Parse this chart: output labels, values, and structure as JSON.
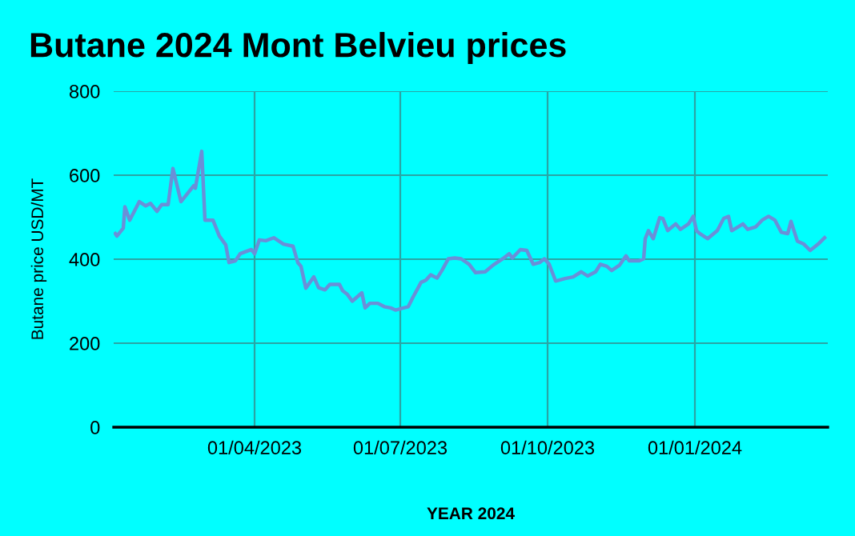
{
  "chart_data": {
    "type": "line",
    "title": "Butane 2024 Mont Belvieu prices",
    "xlabel": "YEAR 2024",
    "ylabel": "Butane price USD/MT",
    "x": [
      "2023-01-04",
      "2023-01-05",
      "2023-01-09",
      "2023-01-10",
      "2023-01-13",
      "2023-01-19",
      "2023-01-23",
      "2023-01-26",
      "2023-01-30",
      "2023-02-02",
      "2023-02-06",
      "2023-02-09",
      "2023-02-14",
      "2023-02-22",
      "2023-02-23",
      "2023-02-27",
      "2023-03-01",
      "2023-03-06",
      "2023-03-10",
      "2023-03-14",
      "2023-03-16",
      "2023-03-20",
      "2023-03-23",
      "2023-03-30",
      "2023-04-01",
      "2023-04-04",
      "2023-04-08",
      "2023-04-13",
      "2023-04-19",
      "2023-04-25",
      "2023-04-28",
      "2023-04-30",
      "2023-05-03",
      "2023-05-08",
      "2023-05-11",
      "2023-05-15",
      "2023-05-18",
      "2023-05-24",
      "2023-05-26",
      "2023-05-29",
      "2023-06-01",
      "2023-06-07",
      "2023-06-09",
      "2023-06-12",
      "2023-06-17",
      "2023-06-21",
      "2023-06-25",
      "2023-06-28",
      "2023-07-06",
      "2023-07-09",
      "2023-07-14",
      "2023-07-17",
      "2023-07-20",
      "2023-07-24",
      "2023-07-27",
      "2023-07-31",
      "2023-08-04",
      "2023-08-08",
      "2023-08-13",
      "2023-08-17",
      "2023-08-23",
      "2023-08-28",
      "2023-09-03",
      "2023-09-07",
      "2023-09-09",
      "2023-09-14",
      "2023-09-18",
      "2023-09-22",
      "2023-09-26",
      "2023-09-29",
      "2023-10-02",
      "2023-10-06",
      "2023-10-12",
      "2023-10-17",
      "2023-10-22",
      "2023-10-26",
      "2023-10-31",
      "2023-11-03",
      "2023-11-07",
      "2023-11-10",
      "2023-11-15",
      "2023-11-19",
      "2023-11-21",
      "2023-11-27",
      "2023-11-30",
      "2023-12-01",
      "2023-12-03",
      "2023-12-06",
      "2023-12-10",
      "2023-12-12",
      "2023-12-15",
      "2023-12-20",
      "2023-12-23",
      "2023-12-28",
      "2023-12-31",
      "2024-01-02",
      "2024-01-04",
      "2024-01-09",
      "2024-01-15",
      "2024-01-19",
      "2024-01-22",
      "2024-01-24",
      "2024-01-28",
      "2024-01-31",
      "2024-02-03",
      "2024-02-08",
      "2024-02-12",
      "2024-02-16",
      "2024-02-20",
      "2024-02-24",
      "2024-02-28",
      "2024-03-01",
      "2024-03-05",
      "2024-03-09",
      "2024-03-13",
      "2024-03-18",
      "2024-03-22"
    ],
    "series": [
      {
        "color": "#6a8fd8",
        "values": [
          461,
          455,
          474,
          525,
          493,
          537,
          527,
          533,
          514,
          530,
          530,
          616,
          537,
          575,
          569,
          657,
          493,
          493,
          455,
          434,
          392,
          396,
          413,
          423,
          413,
          446,
          444,
          451,
          436,
          431,
          392,
          383,
          331,
          358,
          332,
          327,
          340,
          340,
          325,
          316,
          300,
          320,
          284,
          295,
          295,
          287,
          284,
          279,
          287,
          310,
          345,
          350,
          363,
          355,
          373,
          401,
          403,
          401,
          388,
          368,
          370,
          386,
          401,
          413,
          403,
          423,
          421,
          388,
          392,
          401,
          388,
          348,
          354,
          358,
          370,
          360,
          370,
          388,
          383,
          373,
          386,
          408,
          396,
          396,
          401,
          449,
          468,
          449,
          499,
          497,
          468,
          484,
          471,
          484,
          502,
          468,
          461,
          449,
          468,
          497,
          502,
          468,
          477,
          484,
          471,
          477,
          493,
          502,
          493,
          464,
          461,
          490,
          443,
          436,
          421,
          436,
          451
        ]
      }
    ],
    "xlim": [
      "2023-01-03",
      "2024-03-24"
    ],
    "xticks": [
      {
        "value": "2023-04-01",
        "label": "01/04/2023"
      },
      {
        "value": "2023-07-01",
        "label": "01/07/2023"
      },
      {
        "value": "2023-10-01",
        "label": "01/10/2023"
      },
      {
        "value": "2024-01-01",
        "label": "01/01/2024"
      }
    ],
    "ylim": [
      0,
      800
    ],
    "yticks": [
      0,
      200,
      400,
      600,
      800
    ],
    "grid": true,
    "marker": "none",
    "line_style": "solid"
  }
}
